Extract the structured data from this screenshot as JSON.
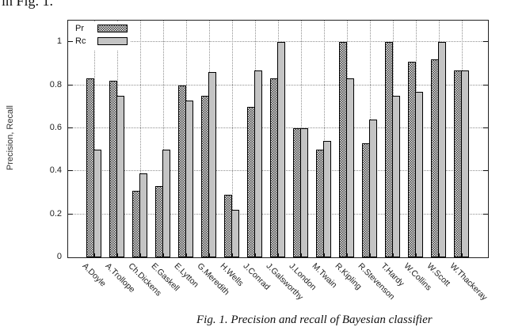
{
  "page": {
    "top_text": "in Fig. 1.",
    "caption": "Fig. 1. Precision and recall of Bayesian classifier"
  },
  "legend": {
    "pr_label": "Pr",
    "rc_label": "Rc"
  },
  "colors": {
    "rc_bar": "#c4c4c4",
    "pr_pattern_dark": "#3a3a3a",
    "grid": "#909090",
    "axis": "#222222"
  },
  "chart_data": {
    "type": "bar",
    "title": "",
    "xlabel": "",
    "ylabel": "Precision, Recall",
    "ylim": [
      0,
      1.1
    ],
    "grid": true,
    "legend_position": "top-left",
    "yticks": [
      {
        "value": 0,
        "label": "0"
      },
      {
        "value": 0.2,
        "label": "0.2"
      },
      {
        "value": 0.4,
        "label": "0.4"
      },
      {
        "value": 0.6,
        "label": "0.6"
      },
      {
        "value": 0.8,
        "label": "0.8"
      },
      {
        "value": 1,
        "label": "1"
      }
    ],
    "categories": [
      "A.Doyle",
      "A.Trollope",
      "Ch.Dickens",
      "E.Gaskell",
      "E.Lytton",
      "G.Meredith",
      "H.Wells",
      "J.Conrad",
      "J.Galsworthy",
      "J.London",
      "M.Twain",
      "R.Kipling",
      "R.Stevenson",
      "T.Hardy",
      "W.Collins",
      "W.Scott",
      "W.Thackeray"
    ],
    "series": [
      {
        "name": "Pr",
        "values": [
          0.83,
          0.82,
          0.31,
          0.33,
          0.8,
          0.75,
          0.29,
          0.7,
          0.83,
          0.6,
          0.5,
          1.0,
          0.53,
          1.0,
          0.91,
          0.92,
          0.87
        ]
      },
      {
        "name": "Rc",
        "values": [
          0.5,
          0.75,
          0.39,
          0.5,
          0.73,
          0.86,
          0.22,
          0.87,
          1.0,
          0.6,
          0.54,
          0.83,
          0.64,
          0.75,
          0.77,
          1.0,
          0.87
        ]
      }
    ]
  }
}
